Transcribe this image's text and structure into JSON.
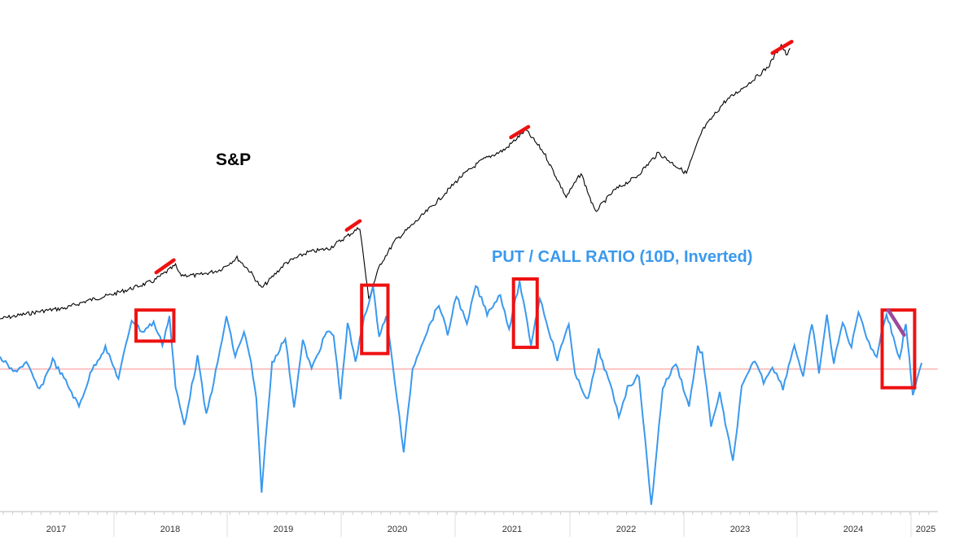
{
  "chart_data": {
    "type": "line",
    "series": [
      {
        "name": "S&P",
        "color": "#000000",
        "points": [
          [
            2016.0,
            2000
          ],
          [
            2016.25,
            2060
          ],
          [
            2016.5,
            2120
          ],
          [
            2016.75,
            2160
          ],
          [
            2017.0,
            2270
          ],
          [
            2017.25,
            2350
          ],
          [
            2017.5,
            2450
          ],
          [
            2017.75,
            2560
          ],
          [
            2018.0,
            2790
          ],
          [
            2018.05,
            2650
          ],
          [
            2018.25,
            2640
          ],
          [
            2018.5,
            2720
          ],
          [
            2018.7,
            2900
          ],
          [
            2018.85,
            2700
          ],
          [
            2018.98,
            2450
          ],
          [
            2019.25,
            2820
          ],
          [
            2019.5,
            2980
          ],
          [
            2019.75,
            3040
          ],
          [
            2020.1,
            3350
          ],
          [
            2020.2,
            2300
          ],
          [
            2020.33,
            2800
          ],
          [
            2020.5,
            3150
          ],
          [
            2020.75,
            3450
          ],
          [
            2021.0,
            3760
          ],
          [
            2021.25,
            4100
          ],
          [
            2021.5,
            4350
          ],
          [
            2021.75,
            4500
          ],
          [
            2021.99,
            4790
          ],
          [
            2022.2,
            4450
          ],
          [
            2022.45,
            3800
          ],
          [
            2022.62,
            4150
          ],
          [
            2022.78,
            3580
          ],
          [
            2023.0,
            3900
          ],
          [
            2023.25,
            4100
          ],
          [
            2023.5,
            4450
          ],
          [
            2023.82,
            4150
          ],
          [
            2024.0,
            4780
          ],
          [
            2024.25,
            5200
          ],
          [
            2024.55,
            5500
          ],
          [
            2024.75,
            5720
          ],
          [
            2024.9,
            6050
          ],
          [
            2024.97,
            5880
          ],
          [
            2025.0,
            6000
          ]
        ]
      },
      {
        "name": "PUT / CALL RATIO (10D, Inverted)",
        "color": "#3a99ee",
        "points": [
          [
            2016.0,
            0.2
          ],
          [
            2016.15,
            -0.05
          ],
          [
            2016.3,
            0.1
          ],
          [
            2016.45,
            -0.35
          ],
          [
            2016.6,
            0.15
          ],
          [
            2016.75,
            -0.2
          ],
          [
            2016.9,
            -0.6
          ],
          [
            2017.05,
            0.0
          ],
          [
            2017.2,
            0.35
          ],
          [
            2017.35,
            -0.15
          ],
          [
            2017.5,
            0.8
          ],
          [
            2017.62,
            0.6
          ],
          [
            2017.75,
            0.75
          ],
          [
            2017.85,
            0.4
          ],
          [
            2017.93,
            0.85
          ],
          [
            2018.0,
            -0.3
          ],
          [
            2018.1,
            -0.9
          ],
          [
            2018.25,
            0.2
          ],
          [
            2018.35,
            -0.75
          ],
          [
            2018.48,
            0.1
          ],
          [
            2018.58,
            0.85
          ],
          [
            2018.68,
            0.2
          ],
          [
            2018.78,
            0.6
          ],
          [
            2018.86,
            0.1
          ],
          [
            2018.92,
            -0.5
          ],
          [
            2018.98,
            -1.95
          ],
          [
            2019.1,
            0.1
          ],
          [
            2019.25,
            0.5
          ],
          [
            2019.35,
            -0.6
          ],
          [
            2019.45,
            0.45
          ],
          [
            2019.55,
            0.0
          ],
          [
            2019.72,
            0.6
          ],
          [
            2019.8,
            0.55
          ],
          [
            2019.88,
            -0.45
          ],
          [
            2019.96,
            0.75
          ],
          [
            2020.05,
            0.1
          ],
          [
            2020.15,
            0.85
          ],
          [
            2020.25,
            1.3
          ],
          [
            2020.32,
            0.55
          ],
          [
            2020.4,
            0.85
          ],
          [
            2020.5,
            -0.2
          ],
          [
            2020.6,
            -1.35
          ],
          [
            2020.7,
            0.0
          ],
          [
            2020.8,
            0.4
          ],
          [
            2021.0,
            1.05
          ],
          [
            2021.1,
            0.55
          ],
          [
            2021.2,
            1.2
          ],
          [
            2021.32,
            0.7
          ],
          [
            2021.42,
            1.35
          ],
          [
            2021.55,
            0.9
          ],
          [
            2021.7,
            1.2
          ],
          [
            2021.8,
            0.65
          ],
          [
            2021.92,
            1.4
          ],
          [
            2022.05,
            0.4
          ],
          [
            2022.15,
            1.15
          ],
          [
            2022.25,
            0.65
          ],
          [
            2022.35,
            0.15
          ],
          [
            2022.48,
            0.75
          ],
          [
            2022.55,
            -0.1
          ],
          [
            2022.7,
            -0.5
          ],
          [
            2022.82,
            0.3
          ],
          [
            2022.95,
            -0.25
          ],
          [
            2023.05,
            -0.75
          ],
          [
            2023.15,
            -0.3
          ],
          [
            2023.28,
            -0.1
          ],
          [
            2023.42,
            -2.2
          ],
          [
            2023.55,
            -0.3
          ],
          [
            2023.7,
            0.1
          ],
          [
            2023.85,
            -0.6
          ],
          [
            2023.95,
            0.35
          ],
          [
            2024.0,
            0.25
          ],
          [
            2024.1,
            -0.9
          ],
          [
            2024.2,
            -0.4
          ],
          [
            2024.35,
            -1.5
          ],
          [
            2024.45,
            -0.3
          ],
          [
            2024.6,
            0.15
          ],
          [
            2024.7,
            -0.2
          ],
          [
            2024.8,
            0.05
          ],
          [
            2024.92,
            -0.3
          ],
          [
            2025.05,
            0.4
          ],
          [
            2025.15,
            -0.15
          ],
          [
            2025.25,
            0.75
          ],
          [
            2025.33,
            -0.05
          ],
          [
            2025.42,
            0.85
          ],
          [
            2025.5,
            0.1
          ],
          [
            2025.6,
            0.75
          ],
          [
            2025.7,
            0.35
          ],
          [
            2025.78,
            0.95
          ],
          [
            2025.9,
            0.4
          ],
          [
            2025.99,
            0.2
          ],
          [
            2026.02,
            0.45
          ],
          [
            2026.1,
            0.9
          ],
          [
            2026.18,
            0.5
          ],
          [
            2026.25,
            0.15
          ],
          [
            2026.32,
            0.75
          ],
          [
            2026.4,
            -0.45
          ],
          [
            2026.5,
            0.1
          ]
        ]
      }
    ],
    "sp_label": "S&P",
    "pc_label": "PUT / CALL RATIO (10D, Inverted)",
    "x_tick_labels": [
      "2017",
      "2018",
      "2019",
      "2020",
      "2021",
      "2022",
      "2023",
      "2024",
      "2025"
    ],
    "reference_line": {
      "value": 0.0,
      "color": "#ff9a9a"
    },
    "annotations": [
      {
        "type": "trend-segment",
        "series": "S&P",
        "x": [
          2017.78,
          2017.98
        ],
        "color": "#ee1111"
      },
      {
        "type": "trend-segment",
        "series": "S&P",
        "x": [
          2019.95,
          2020.1
        ],
        "color": "#ee1111"
      },
      {
        "type": "trend-segment",
        "series": "S&P",
        "x": [
          2021.82,
          2022.02
        ],
        "color": "#ee1111"
      },
      {
        "type": "trend-segment",
        "series": "S&P",
        "x": [
          2024.8,
          2025.02
        ],
        "color": "#ee1111"
      },
      {
        "type": "box",
        "series": "PUT / CALL RATIO (10D, Inverted)",
        "x": [
          2017.55,
          2017.98
        ],
        "y": [
          0.45,
          0.95
        ],
        "color": "#ee1111"
      },
      {
        "type": "box",
        "series": "PUT / CALL RATIO (10D, Inverted)",
        "x": [
          2020.12,
          2020.42
        ],
        "y": [
          0.25,
          1.35
        ],
        "color": "#ee1111"
      },
      {
        "type": "box",
        "series": "PUT / CALL RATIO (10D, Inverted)",
        "x": [
          2021.85,
          2022.12
        ],
        "y": [
          0.35,
          1.45
        ],
        "color": "#ee1111"
      },
      {
        "type": "box",
        "series": "PUT / CALL RATIO (10D, Inverted)",
        "x": [
          2026.05,
          2026.42
        ],
        "y": [
          -0.3,
          0.95
        ],
        "color": "#ee1111"
      },
      {
        "type": "trend-segment",
        "series": "PUT / CALL RATIO (10D, Inverted)",
        "x": [
          2026.12,
          2026.3
        ],
        "y": [
          0.95,
          0.55
        ],
        "color": "#9b4a9b"
      }
    ],
    "grid": false,
    "legend": "none"
  }
}
